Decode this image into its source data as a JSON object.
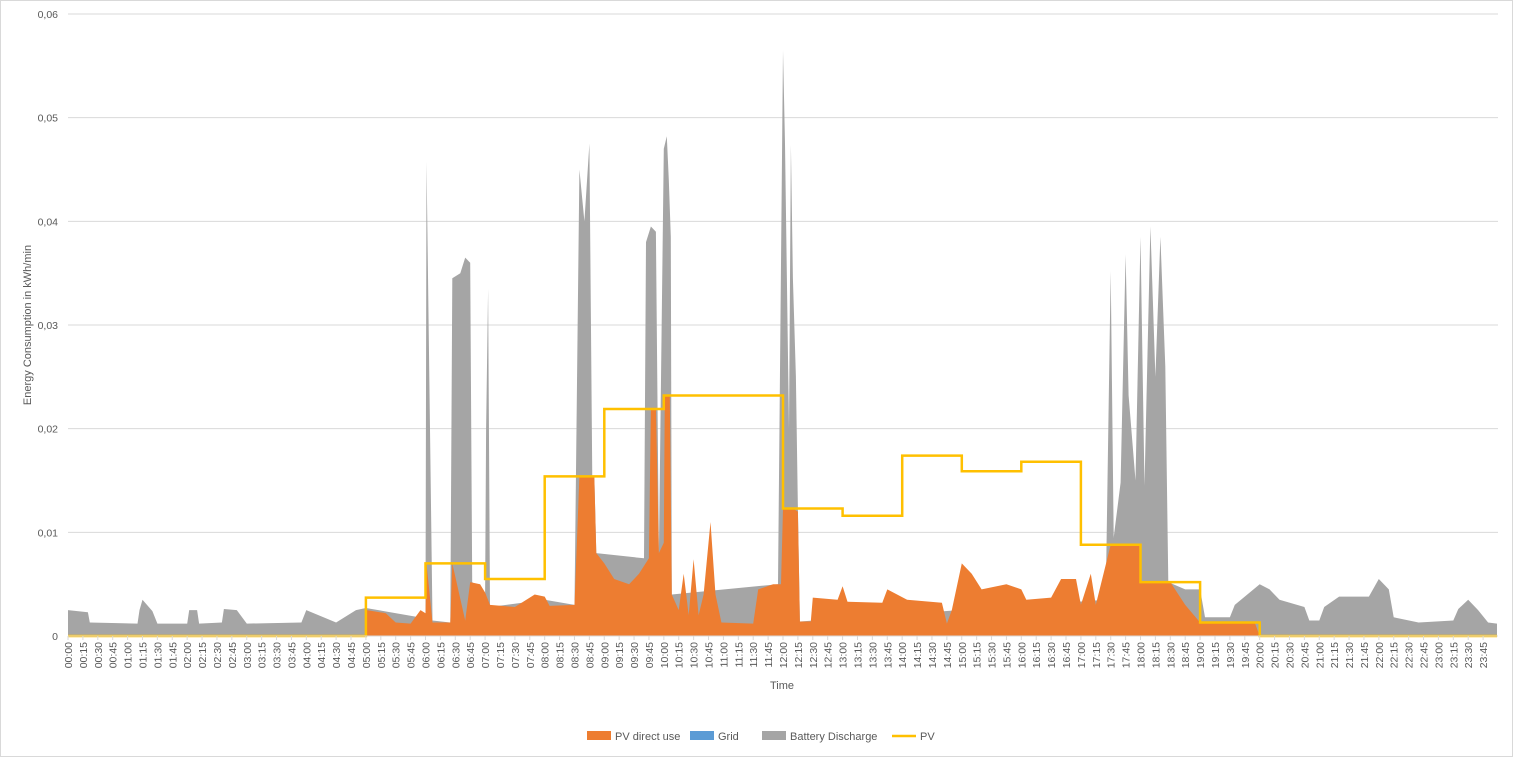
{
  "chart_data": {
    "type": "area",
    "title": "",
    "xlabel": "Time",
    "ylabel": "Energy Consumption in kWh/min",
    "ylim": [
      0,
      0.06
    ],
    "y_ticks": [
      "0",
      "0,01",
      "0,02",
      "0,03",
      "0,04",
      "0,05",
      "0,06"
    ],
    "x_ticks": [
      "00:00",
      "00:15",
      "00:30",
      "00:45",
      "01:00",
      "01:15",
      "01:30",
      "01:45",
      "02:00",
      "02:15",
      "02:30",
      "02:45",
      "03:00",
      "03:15",
      "03:30",
      "03:45",
      "04:00",
      "04:15",
      "04:30",
      "04:45",
      "05:00",
      "05:15",
      "05:30",
      "05:45",
      "06:00",
      "06:15",
      "06:30",
      "06:45",
      "07:00",
      "07:15",
      "07:30",
      "07:45",
      "08:00",
      "08:15",
      "08:30",
      "08:45",
      "09:00",
      "09:15",
      "09:30",
      "09:45",
      "10:00",
      "10:15",
      "10:30",
      "10:45",
      "11:00",
      "11:15",
      "11:30",
      "11:45",
      "12:00",
      "12:15",
      "12:30",
      "12:45",
      "13:00",
      "13:15",
      "13:30",
      "13:45",
      "14:00",
      "14:15",
      "14:30",
      "14:45",
      "15:00",
      "15:15",
      "15:30",
      "15:45",
      "16:00",
      "16:15",
      "16:30",
      "16:45",
      "17:00",
      "17:15",
      "17:30",
      "17:45",
      "18:00",
      "18:15",
      "18:30",
      "18:45",
      "19:00",
      "19:15",
      "19:30",
      "19:45",
      "20:00",
      "20:15",
      "20:30",
      "20:45",
      "21:00",
      "21:15",
      "21:30",
      "21:45",
      "22:00",
      "22:15",
      "22:30",
      "22:45",
      "23:00",
      "23:15",
      "23:30",
      "23:45"
    ],
    "grid": true,
    "legend_position": "bottom",
    "series": [
      {
        "name": "PV direct use",
        "kind": "area",
        "color": "#ED7D31",
        "points": [
          [
            "05:00",
            0.0
          ],
          [
            "05:01",
            0.0025
          ],
          [
            "05:20",
            0.0022
          ],
          [
            "05:30",
            0.0013
          ],
          [
            "05:45",
            0.0012
          ],
          [
            "05:55",
            0.0025
          ],
          [
            "06:00",
            0.0022
          ],
          [
            "06:01",
            0.007
          ],
          [
            "06:07",
            0.0013
          ],
          [
            "06:25",
            0.0013
          ],
          [
            "06:27",
            0.007
          ],
          [
            "06:40",
            0.0015
          ],
          [
            "06:45",
            0.0052
          ],
          [
            "06:55",
            0.005
          ],
          [
            "07:00",
            0.0042
          ],
          [
            "07:05",
            0.003
          ],
          [
            "07:30",
            0.0028
          ],
          [
            "07:50",
            0.004
          ],
          [
            "08:00",
            0.0038
          ],
          [
            "08:05",
            0.0029
          ],
          [
            "08:30",
            0.003
          ],
          [
            "08:35",
            0.0154
          ],
          [
            "08:50",
            0.0154
          ],
          [
            "08:52",
            0.008
          ],
          [
            "09:00",
            0.007
          ],
          [
            "09:10",
            0.0055
          ],
          [
            "09:25",
            0.005
          ],
          [
            "09:35",
            0.006
          ],
          [
            "09:45",
            0.0075
          ],
          [
            "09:47",
            0.022
          ],
          [
            "09:52",
            0.022
          ],
          [
            "09:55",
            0.008
          ],
          [
            "10:00",
            0.009
          ],
          [
            "10:01",
            0.0232
          ],
          [
            "10:06",
            0.0232
          ],
          [
            "10:08",
            0.004
          ],
          [
            "10:15",
            0.0025
          ],
          [
            "10:20",
            0.006
          ],
          [
            "10:25",
            0.002
          ],
          [
            "10:30",
            0.0074
          ],
          [
            "10:35",
            0.002
          ],
          [
            "10:40",
            0.004
          ],
          [
            "10:47",
            0.011
          ],
          [
            "10:52",
            0.004
          ],
          [
            "10:58",
            0.0013
          ],
          [
            "11:30",
            0.0012
          ],
          [
            "11:35",
            0.0045
          ],
          [
            "11:50",
            0.005
          ],
          [
            "11:58",
            0.005
          ],
          [
            "12:00",
            0.0123
          ],
          [
            "12:10",
            0.0123
          ],
          [
            "12:15",
            0.012
          ],
          [
            "12:17",
            0.0014
          ],
          [
            "12:28",
            0.0014
          ],
          [
            "12:30",
            0.0037
          ],
          [
            "12:55",
            0.0035
          ],
          [
            "13:00",
            0.0048
          ],
          [
            "13:05",
            0.0033
          ],
          [
            "13:40",
            0.0032
          ],
          [
            "13:45",
            0.0045
          ],
          [
            "14:05",
            0.0035
          ],
          [
            "14:40",
            0.0032
          ],
          [
            "14:45",
            0.0012
          ],
          [
            "14:50",
            0.0025
          ],
          [
            "15:00",
            0.007
          ],
          [
            "15:10",
            0.006
          ],
          [
            "15:20",
            0.0045
          ],
          [
            "15:45",
            0.005
          ],
          [
            "16:00",
            0.0045
          ],
          [
            "16:05",
            0.0035
          ],
          [
            "16:30",
            0.0037
          ],
          [
            "16:40",
            0.0055
          ],
          [
            "16:55",
            0.0055
          ],
          [
            "17:00",
            0.003
          ],
          [
            "17:10",
            0.006
          ],
          [
            "17:15",
            0.003
          ],
          [
            "17:30",
            0.0088
          ],
          [
            "18:00",
            0.0088
          ],
          [
            "18:01",
            0.0052
          ],
          [
            "18:30",
            0.0052
          ],
          [
            "18:45",
            0.003
          ],
          [
            "19:00",
            0.0013
          ],
          [
            "19:55",
            0.0013
          ],
          [
            "20:00",
            0.0
          ]
        ]
      },
      {
        "name": "Grid",
        "kind": "area",
        "color": "#5B9BD5",
        "points": []
      },
      {
        "name": "Battery Discharge",
        "kind": "area",
        "color": "#A5A5A5",
        "points": [
          [
            "00:00",
            0.0025
          ],
          [
            "00:20",
            0.0023
          ],
          [
            "00:22",
            0.0013
          ],
          [
            "01:10",
            0.0012
          ],
          [
            "01:12",
            0.0025
          ],
          [
            "01:15",
            0.0035
          ],
          [
            "01:25",
            0.0024
          ],
          [
            "01:30",
            0.0012
          ],
          [
            "02:00",
            0.0012
          ],
          [
            "02:02",
            0.0025
          ],
          [
            "02:10",
            0.0025
          ],
          [
            "02:12",
            0.0012
          ],
          [
            "02:35",
            0.0013
          ],
          [
            "02:37",
            0.0026
          ],
          [
            "02:50",
            0.0025
          ],
          [
            "03:00",
            0.0012
          ],
          [
            "03:55",
            0.0013
          ],
          [
            "04:00",
            0.0025
          ],
          [
            "04:30",
            0.0013
          ],
          [
            "04:50",
            0.0025
          ],
          [
            "05:00",
            0.0027
          ],
          [
            "06:00",
            0.0017
          ],
          [
            "06:01",
            0.0458
          ],
          [
            "06:03",
            0.031
          ],
          [
            "06:07",
            0.0015
          ],
          [
            "06:25",
            0.0013
          ],
          [
            "06:27",
            0.0345
          ],
          [
            "06:35",
            0.035
          ],
          [
            "06:40",
            0.0365
          ],
          [
            "06:45",
            0.036
          ],
          [
            "06:47",
            0.0052
          ],
          [
            "07:00",
            0.004
          ],
          [
            "07:01",
            0.02
          ],
          [
            "07:03",
            0.0335
          ],
          [
            "07:05",
            0.0028
          ],
          [
            "08:00",
            0.0035
          ],
          [
            "08:30",
            0.003
          ],
          [
            "08:35",
            0.045
          ],
          [
            "08:40",
            0.04
          ],
          [
            "08:45",
            0.0475
          ],
          [
            "08:48",
            0.015
          ],
          [
            "08:50",
            0.0155
          ],
          [
            "08:52",
            0.008
          ],
          [
            "09:40",
            0.0075
          ],
          [
            "09:42",
            0.038
          ],
          [
            "09:47",
            0.0395
          ],
          [
            "09:52",
            0.039
          ],
          [
            "09:55",
            0.008
          ],
          [
            "10:00",
            0.047
          ],
          [
            "10:03",
            0.0482
          ],
          [
            "10:05",
            0.044
          ],
          [
            "10:07",
            0.0385
          ],
          [
            "10:08",
            0.004
          ],
          [
            "11:55",
            0.005
          ],
          [
            "12:00",
            0.0565
          ],
          [
            "12:02",
            0.0475
          ],
          [
            "12:06",
            0.02
          ],
          [
            "12:08",
            0.0474
          ],
          [
            "12:10",
            0.0345
          ],
          [
            "12:13",
            0.025
          ],
          [
            "12:15",
            0.0123
          ],
          [
            "12:17",
            0.0014
          ],
          [
            "17:25",
            0.0035
          ],
          [
            "17:30",
            0.0352
          ],
          [
            "17:33",
            0.0095
          ],
          [
            "17:40",
            0.0148
          ],
          [
            "17:45",
            0.0368
          ],
          [
            "17:48",
            0.0232
          ],
          [
            "17:55",
            0.015
          ],
          [
            "18:00",
            0.0385
          ],
          [
            "18:04",
            0.0145
          ],
          [
            "18:10",
            0.0395
          ],
          [
            "18:15",
            0.025
          ],
          [
            "18:20",
            0.0385
          ],
          [
            "18:25",
            0.026
          ],
          [
            "18:28",
            0.0052
          ],
          [
            "18:45",
            0.0045
          ],
          [
            "19:00",
            0.0045
          ],
          [
            "19:05",
            0.0018
          ],
          [
            "19:30",
            0.0018
          ],
          [
            "19:35",
            0.003
          ],
          [
            "20:00",
            0.005
          ],
          [
            "20:10",
            0.0045
          ],
          [
            "20:20",
            0.0035
          ],
          [
            "20:45",
            0.0028
          ],
          [
            "20:50",
            0.0015
          ],
          [
            "21:00",
            0.0015
          ],
          [
            "21:05",
            0.0028
          ],
          [
            "21:20",
            0.0038
          ],
          [
            "21:50",
            0.0038
          ],
          [
            "22:00",
            0.0055
          ],
          [
            "22:10",
            0.0045
          ],
          [
            "22:15",
            0.0018
          ],
          [
            "22:40",
            0.0013
          ],
          [
            "23:15",
            0.0015
          ],
          [
            "23:20",
            0.0026
          ],
          [
            "23:30",
            0.0035
          ],
          [
            "23:40",
            0.0025
          ],
          [
            "23:50",
            0.0013
          ],
          [
            "23:59",
            0.0012
          ]
        ]
      },
      {
        "name": "PV",
        "kind": "step-line",
        "color": "#FFC000",
        "points": [
          [
            "00:00",
            0.0
          ],
          [
            "05:00",
            0.0037
          ],
          [
            "06:00",
            0.007
          ],
          [
            "07:00",
            0.0055
          ],
          [
            "08:00",
            0.0154
          ],
          [
            "09:00",
            0.0219
          ],
          [
            "10:00",
            0.0232
          ],
          [
            "12:00",
            0.0123
          ],
          [
            "13:00",
            0.0116
          ],
          [
            "14:00",
            0.0174
          ],
          [
            "15:00",
            0.0159
          ],
          [
            "16:00",
            0.0168
          ],
          [
            "17:00",
            0.0088
          ],
          [
            "18:00",
            0.0052
          ],
          [
            "19:00",
            0.0013
          ],
          [
            "20:00",
            0.0
          ],
          [
            "23:59",
            0.0
          ]
        ]
      }
    ]
  },
  "legend": [
    {
      "label": "PV direct use",
      "color": "#ED7D31",
      "kind": "box"
    },
    {
      "label": "Grid",
      "color": "#5B9BD5",
      "kind": "box"
    },
    {
      "label": "Battery Discharge",
      "color": "#A5A5A5",
      "kind": "box"
    },
    {
      "label": "PV",
      "color": "#FFC000",
      "kind": "line"
    }
  ]
}
